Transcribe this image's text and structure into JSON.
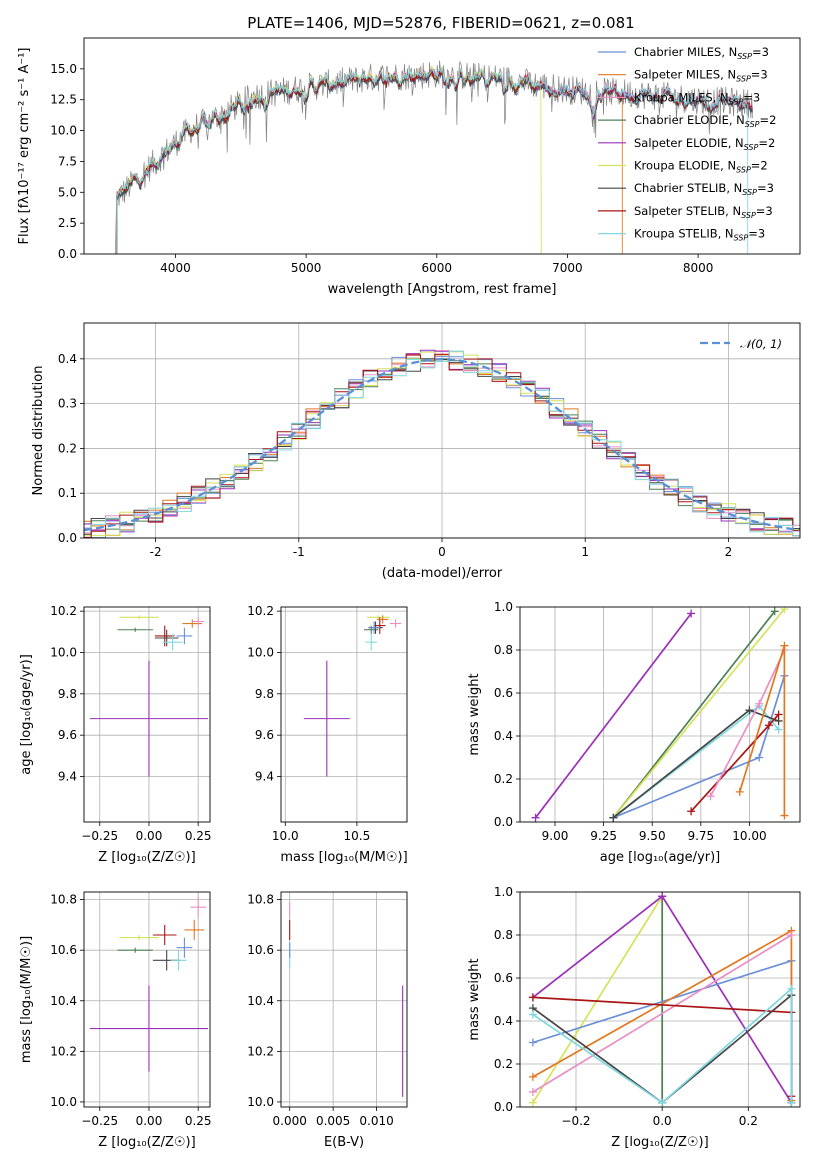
{
  "colors": {
    "Chabrier MILES": "#6a8fd8",
    "Salpeter MILES": "#e07820",
    "Kroupa MILES": "#e98fc5",
    "Chabrier ELODIE": "#4e8055",
    "Salpeter ELODIE": "#9a30b8",
    "Kroupa ELODIE": "#d6e25a",
    "Chabrier STELIB": "#454545",
    "Salpeter STELIB": "#aa1515",
    "Kroupa STELIB": "#7fd8e0",
    "gaussian": "#5b8fd8",
    "spectrum": "#808080",
    "grid": "#b0b0b0"
  },
  "chart_data": [
    {
      "id": "spectrum",
      "type": "line",
      "title": "PLATE=1406, MJD=52876, FIBERID=0621, z=0.081",
      "xlabel": "wavelength [Angstrom, rest frame]",
      "ylabel": "Flux [fλ10⁻¹⁷ erg cm⁻² s⁻¹ A⁻¹]",
      "xlim": [
        3300,
        8780
      ],
      "ylim": [
        0,
        17.5
      ],
      "xticks": [
        4000,
        5000,
        6000,
        7000,
        8000
      ],
      "yticks": [
        0.0,
        2.5,
        5.0,
        7.5,
        10.0,
        12.5,
        15.0
      ],
      "legend": [
        "Chabrier MILES, N_SSP=3",
        "Salpeter MILES, N_SSP=3",
        "Kroupa MILES, N_SSP=3",
        "Chabrier ELODIE, N_SSP=2",
        "Salpeter ELODIE, N_SSP=2",
        "Kroupa ELODIE, N_SSP=2",
        "Chabrier STELIB, N_SSP=3",
        "Salpeter STELIB, N_SSP=3",
        "Kroupa STELIB, N_SSP=3"
      ],
      "continuum": [
        [
          3550,
          4.5
        ],
        [
          3700,
          6.0
        ],
        [
          3900,
          8.0
        ],
        [
          4100,
          10.0
        ],
        [
          4300,
          11.0
        ],
        [
          4600,
          12.8
        ],
        [
          5000,
          13.5
        ],
        [
          5500,
          14.3
        ],
        [
          6000,
          14.6
        ],
        [
          6500,
          14.2
        ],
        [
          7000,
          13.3
        ],
        [
          7500,
          13.0
        ],
        [
          8000,
          12.5
        ],
        [
          8400,
          12.2
        ]
      ],
      "series_cutoffs": {
        "Kroupa ELODIE": 6800,
        "Salpeter MILES": 7420,
        "Kroupa STELIB": 8380
      }
    },
    {
      "id": "residuals",
      "type": "histogram",
      "xlabel": "(data-model)/error",
      "ylabel": "Normed distribution",
      "xlim": [
        -2.5,
        2.5
      ],
      "ylim": [
        0,
        0.48
      ],
      "xticks": [
        -2,
        -1,
        0,
        1,
        2
      ],
      "yticks": [
        0.0,
        0.1,
        0.2,
        0.3,
        0.4
      ],
      "bin_width": 0.1,
      "legend": [
        "𝒩(0, 1)"
      ]
    },
    {
      "id": "age_vs_Z",
      "type": "errorbar",
      "xlabel": "Z [log₁₀(Z/Z☉)]",
      "ylabel": "age  [log₁₀(age/yr)]",
      "xlim": [
        -0.33,
        0.31
      ],
      "ylim": [
        9.18,
        10.22
      ],
      "xticks": [
        -0.25,
        0.0,
        0.25
      ],
      "xticklabels": [
        "−0.25",
        "0.00",
        "0.25"
      ],
      "yticks": [
        9.4,
        9.6,
        9.8,
        10.0,
        10.2
      ],
      "points": [
        {
          "series": "Salpeter ELODIE",
          "x": 0.0,
          "y": 9.68,
          "xerr": 0.3,
          "yerr": 0.28
        },
        {
          "series": "Kroupa ELODIE",
          "x": -0.05,
          "y": 10.17,
          "xerr": 0.1,
          "yerr": 0.01
        },
        {
          "series": "Chabrier ELODIE",
          "x": -0.07,
          "y": 10.11,
          "xerr": 0.09,
          "yerr": 0.01
        },
        {
          "series": "Salpeter STELIB",
          "x": 0.08,
          "y": 10.08,
          "xerr": 0.05,
          "yerr": 0.05
        },
        {
          "series": "Chabrier STELIB",
          "x": 0.09,
          "y": 10.07,
          "xerr": 0.06,
          "yerr": 0.04
        },
        {
          "series": "Chabrier MILES",
          "x": 0.18,
          "y": 10.08,
          "xerr": 0.04,
          "yerr": 0.04
        },
        {
          "series": "Kroupa STELIB",
          "x": 0.12,
          "y": 10.05,
          "xerr": 0.05,
          "yerr": 0.04
        },
        {
          "series": "Salpeter MILES",
          "x": 0.22,
          "y": 10.14,
          "xerr": 0.05,
          "yerr": 0.02
        },
        {
          "series": "Kroupa MILES",
          "x": 0.25,
          "y": 10.15,
          "xerr": 0.03,
          "yerr": 0.02
        }
      ]
    },
    {
      "id": "age_vs_mass",
      "type": "errorbar",
      "xlabel": "mass [log₁₀(M/M☉)]",
      "xlim": [
        9.97,
        10.85
      ],
      "ylim": [
        9.18,
        10.22
      ],
      "xticks": [
        10.0,
        10.5
      ],
      "xticklabels": [
        "10.0",
        "10.5"
      ],
      "yticks": [
        9.4,
        9.6,
        9.8,
        10.0,
        10.2
      ],
      "points": [
        {
          "series": "Salpeter ELODIE",
          "x": 10.29,
          "y": 9.68,
          "xerr": 0.16,
          "yerr": 0.28
        },
        {
          "series": "Kroupa ELODIE",
          "x": 10.65,
          "y": 10.17,
          "xerr": 0.08,
          "yerr": 0.01
        },
        {
          "series": "Chabrier ELODIE",
          "x": 10.6,
          "y": 10.11,
          "xerr": 0.05,
          "yerr": 0.02
        },
        {
          "series": "Salpeter STELIB",
          "x": 10.66,
          "y": 10.13,
          "xerr": 0.04,
          "yerr": 0.04
        },
        {
          "series": "Chabrier STELIB",
          "x": 10.63,
          "y": 10.12,
          "xerr": 0.05,
          "yerr": 0.03
        },
        {
          "series": "Chabrier MILES",
          "x": 10.62,
          "y": 10.12,
          "xerr": 0.04,
          "yerr": 0.03
        },
        {
          "series": "Kroupa STELIB",
          "x": 10.6,
          "y": 10.05,
          "xerr": 0.04,
          "yerr": 0.04
        },
        {
          "series": "Salpeter MILES",
          "x": 10.68,
          "y": 10.16,
          "xerr": 0.04,
          "yerr": 0.02
        },
        {
          "series": "Kroupa MILES",
          "x": 10.77,
          "y": 10.14,
          "xerr": 0.04,
          "yerr": 0.02
        }
      ]
    },
    {
      "id": "weight_vs_age",
      "type": "line",
      "xlabel": "age  [log₁₀(age/yr)]",
      "ylabel": "mass weight",
      "xlim": [
        8.82,
        10.26
      ],
      "ylim": [
        0,
        1
      ],
      "xticks": [
        9.0,
        9.25,
        9.5,
        9.75,
        10.0
      ],
      "xticklabels": [
        "9.00",
        "9.25",
        "9.50",
        "9.75",
        "10.00"
      ],
      "yticks": [
        0.0,
        0.2,
        0.4,
        0.6,
        0.8,
        1.0
      ],
      "series": [
        {
          "name": "Salpeter ELODIE",
          "x": [
            8.9,
            9.7
          ],
          "y": [
            0.02,
            0.97
          ]
        },
        {
          "name": "Chabrier ELODIE",
          "x": [
            9.3,
            10.13
          ],
          "y": [
            0.02,
            0.98
          ]
        },
        {
          "name": "Kroupa ELODIE",
          "x": [
            9.3,
            10.18
          ],
          "y": [
            0.02,
            0.99
          ]
        },
        {
          "name": "Chabrier MILES",
          "x": [
            9.3,
            10.05,
            10.18
          ],
          "y": [
            0.02,
            0.3,
            0.68
          ]
        },
        {
          "name": "Kroupa STELIB",
          "x": [
            9.3,
            10.05,
            10.15
          ],
          "y": [
            0.02,
            0.54,
            0.43
          ]
        },
        {
          "name": "Chabrier STELIB",
          "x": [
            9.3,
            10.0,
            10.15
          ],
          "y": [
            0.02,
            0.52,
            0.47
          ]
        },
        {
          "name": "Salpeter STELIB",
          "x": [
            9.7,
            10.1,
            10.15
          ],
          "y": [
            0.05,
            0.45,
            0.5
          ]
        },
        {
          "name": "Kroupa MILES",
          "x": [
            9.8,
            10.05,
            10.18
          ],
          "y": [
            0.12,
            0.55,
            0.8
          ]
        },
        {
          "name": "Salpeter MILES",
          "x": [
            9.95,
            10.18,
            10.18
          ],
          "y": [
            0.14,
            0.82,
            0.03
          ]
        }
      ]
    },
    {
      "id": "mass_vs_Z",
      "type": "errorbar",
      "xlabel": "Z [log₁₀(Z/Z☉)]",
      "ylabel": "mass [log₁₀(M/M☉)]",
      "xlim": [
        -0.33,
        0.31
      ],
      "ylim": [
        9.98,
        10.83
      ],
      "xticks": [
        -0.25,
        0.0,
        0.25
      ],
      "xticklabels": [
        "−0.25",
        "0.00",
        "0.25"
      ],
      "yticks": [
        10.0,
        10.2,
        10.4,
        10.6,
        10.8
      ],
      "points": [
        {
          "series": "Salpeter ELODIE",
          "x": 0.0,
          "y": 10.29,
          "xerr": 0.3,
          "yerr": 0.17
        },
        {
          "series": "Kroupa ELODIE",
          "x": -0.05,
          "y": 10.65,
          "xerr": 0.1,
          "yerr": 0.01
        },
        {
          "series": "Chabrier ELODIE",
          "x": -0.07,
          "y": 10.6,
          "xerr": 0.09,
          "yerr": 0.01
        },
        {
          "series": "Salpeter STELIB",
          "x": 0.08,
          "y": 10.66,
          "xerr": 0.06,
          "yerr": 0.04
        },
        {
          "series": "Chabrier STELIB",
          "x": 0.09,
          "y": 10.56,
          "xerr": 0.07,
          "yerr": 0.04
        },
        {
          "series": "Chabrier MILES",
          "x": 0.18,
          "y": 10.61,
          "xerr": 0.04,
          "yerr": 0.04
        },
        {
          "series": "Kroupa STELIB",
          "x": 0.15,
          "y": 10.56,
          "xerr": 0.04,
          "yerr": 0.04
        },
        {
          "series": "Salpeter MILES",
          "x": 0.23,
          "y": 10.68,
          "xerr": 0.05,
          "yerr": 0.04
        },
        {
          "series": "Kroupa MILES",
          "x": 0.25,
          "y": 10.77,
          "xerr": 0.04,
          "yerr": 0.04
        }
      ]
    },
    {
      "id": "mass_vs_ebv",
      "type": "errorbar",
      "xlabel": "E(B-V)",
      "xlim": [
        -0.001,
        0.0135
      ],
      "ylim": [
        9.98,
        10.83
      ],
      "xticks": [
        0.0,
        0.005,
        0.01
      ],
      "xticklabels": [
        "0.000",
        "0.005",
        "0.010"
      ],
      "yticks": [
        10.0,
        10.2,
        10.4,
        10.6,
        10.8
      ],
      "points": [
        {
          "series": "Salpeter ELODIE",
          "x": 0.013,
          "y": 10.24,
          "xerr": 0,
          "yerr": 0.22
        },
        {
          "series": "Salpeter STELIB",
          "x": 0.0,
          "y": 10.68,
          "xerr": 0,
          "yerr": 0.04
        },
        {
          "series": "Kroupa STELIB",
          "x": 0.0,
          "y": 10.58,
          "xerr": 0,
          "yerr": 0.05
        },
        {
          "series": "Chabrier MILES",
          "x": 0.0,
          "y": 10.6,
          "xerr": 0,
          "yerr": 0.03
        },
        {
          "series": "Kroupa MILES",
          "x": 0.0,
          "y": 10.76,
          "xerr": 0,
          "yerr": 0.03
        }
      ]
    },
    {
      "id": "weight_vs_Z",
      "type": "line",
      "xlabel": "Z [log₁₀(Z/Z☉)]",
      "ylabel": "mass weight",
      "xlim": [
        -0.33,
        0.32
      ],
      "ylim": [
        0,
        1
      ],
      "xticks": [
        -0.2,
        0.0,
        0.2
      ],
      "xticklabels": [
        "−0.2",
        "0.0",
        "0.2"
      ],
      "yticks": [
        0.0,
        0.2,
        0.4,
        0.6,
        0.8,
        1.0
      ],
      "series": [
        {
          "name": "Kroupa ELODIE",
          "x": [
            -0.3,
            0.0,
            0.0
          ],
          "y": [
            0.02,
            0.98,
            0.02
          ]
        },
        {
          "name": "Chabrier ELODIE",
          "x": [
            0.0,
            0.0
          ],
          "y": [
            0.98,
            0.02
          ]
        },
        {
          "name": "Salpeter ELODIE",
          "x": [
            -0.3,
            0.0,
            0.3
          ],
          "y": [
            0.51,
            0.98,
            0.02
          ]
        },
        {
          "name": "Chabrier MILES",
          "x": [
            -0.3,
            0.3,
            0.3
          ],
          "y": [
            0.3,
            0.68,
            0.02
          ]
        },
        {
          "name": "Salpeter MILES",
          "x": [
            -0.3,
            0.3,
            0.3
          ],
          "y": [
            0.14,
            0.82,
            0.03
          ]
        },
        {
          "name": "Kroupa MILES",
          "x": [
            -0.3,
            0.3
          ],
          "y": [
            0.07,
            0.8
          ]
        },
        {
          "name": "Salpeter STELIB",
          "x": [
            -0.3,
            0.3,
            0.3
          ],
          "y": [
            0.51,
            0.44,
            0.05
          ]
        },
        {
          "name": "Chabrier STELIB",
          "x": [
            -0.3,
            0.0,
            0.3,
            0.3
          ],
          "y": [
            0.46,
            0.02,
            0.52,
            0.02
          ]
        },
        {
          "name": "Kroupa STELIB",
          "x": [
            -0.3,
            0.0,
            0.3,
            0.3
          ],
          "y": [
            0.43,
            0.02,
            0.55,
            0.02
          ]
        }
      ]
    }
  ]
}
